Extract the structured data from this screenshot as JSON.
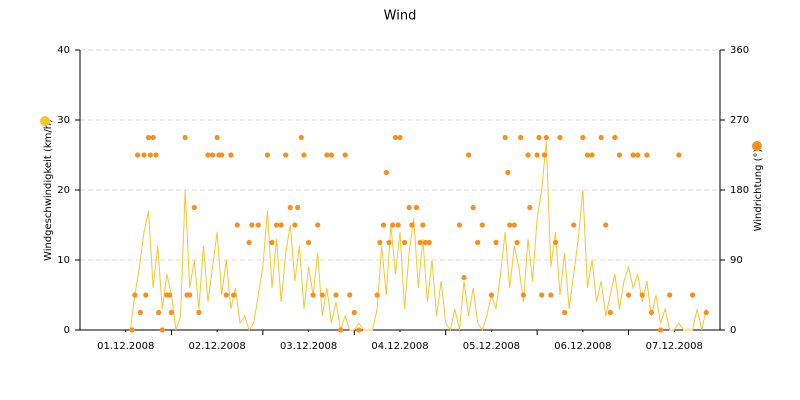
{
  "chart_data": {
    "type": "line-scatter",
    "title": "Wind",
    "y_label": "Windgeschwindigkeit (km/h)",
    "y2_label": "Windrichtung (°)",
    "xlim": [
      0,
      7
    ],
    "xticks": [
      {
        "value": 0.5,
        "label": "01.12.2008"
      },
      {
        "value": 1.5,
        "label": "02.12.2008"
      },
      {
        "value": 2.5,
        "label": "03.12.2008"
      },
      {
        "value": 3.5,
        "label": "04.12.2008"
      },
      {
        "value": 4.5,
        "label": "05.12.2008"
      },
      {
        "value": 5.5,
        "label": "06.12.2008"
      },
      {
        "value": 6.5,
        "label": "07.12.2008"
      }
    ],
    "ylim": [
      0,
      40
    ],
    "yticks": [
      0,
      10,
      20,
      30,
      40
    ],
    "y2lim": [
      0,
      360
    ],
    "y2ticks": [
      0,
      90,
      180,
      270,
      360
    ],
    "grid": true,
    "series": [
      {
        "type": "line",
        "color": "#f8c630",
        "x": [
          0.55,
          0.6,
          0.65,
          0.7,
          0.75,
          0.8,
          0.85,
          0.9,
          0.95,
          1.0,
          1.05,
          1.1,
          1.15,
          1.2,
          1.25,
          1.3,
          1.35,
          1.4,
          1.45,
          1.5,
          1.55,
          1.6,
          1.65,
          1.7,
          1.75,
          1.8,
          1.85,
          1.9,
          1.95,
          2.0,
          2.05,
          2.1,
          2.15,
          2.2,
          2.25,
          2.3,
          2.35,
          2.4,
          2.45,
          2.5,
          2.55,
          2.6,
          2.65,
          2.7,
          2.75,
          2.8,
          2.85,
          2.9,
          2.95,
          3.0,
          3.05,
          3.1,
          3.15,
          3.2,
          3.25,
          3.3,
          3.35,
          3.4,
          3.45,
          3.5,
          3.55,
          3.6,
          3.65,
          3.7,
          3.75,
          3.8,
          3.85,
          3.9,
          3.95,
          4.0,
          4.05,
          4.1,
          4.15,
          4.2,
          4.25,
          4.3,
          4.35,
          4.4,
          4.45,
          4.5,
          4.55,
          4.6,
          4.65,
          4.7,
          4.75,
          4.8,
          4.85,
          4.9,
          4.95,
          5.0,
          5.05,
          5.1,
          5.15,
          5.2,
          5.25,
          5.3,
          5.35,
          5.4,
          5.45,
          5.5,
          5.55,
          5.6,
          5.65,
          5.7,
          5.75,
          5.8,
          5.85,
          5.9,
          5.95,
          6.0,
          6.05,
          6.1,
          6.15,
          6.2,
          6.25,
          6.3,
          6.35,
          6.4,
          6.45,
          6.5,
          6.55,
          6.6,
          6.65,
          6.7,
          6.75,
          6.8,
          6.85
        ],
        "values": [
          0,
          5,
          9,
          14,
          17,
          6,
          12,
          3,
          8,
          5,
          0,
          2,
          20,
          6,
          10,
          3,
          12,
          4,
          9,
          14,
          5,
          10,
          3,
          6,
          1,
          2,
          0,
          1,
          5,
          9,
          17,
          6,
          13,
          4,
          11,
          15,
          7,
          12,
          3,
          9,
          5,
          11,
          2,
          6,
          1,
          4,
          0,
          2,
          0,
          0,
          1,
          0,
          0,
          0,
          3,
          12,
          5,
          15,
          8,
          14,
          3,
          11,
          16,
          6,
          13,
          4,
          10,
          2,
          7,
          1,
          0,
          3,
          0,
          7,
          2,
          6,
          1,
          0,
          2,
          5,
          3,
          8,
          14,
          6,
          12,
          9,
          4,
          13,
          7,
          16,
          20,
          27,
          9,
          14,
          5,
          11,
          3,
          8,
          13,
          20,
          6,
          10,
          4,
          7,
          2,
          5,
          8,
          3,
          7,
          9,
          6,
          8,
          4,
          7,
          2,
          5,
          1,
          3,
          0,
          0,
          1,
          0,
          0,
          0,
          3,
          0,
          3
        ]
      },
      {
        "type": "scatter",
        "axis": "y2",
        "color": "#f7901e",
        "x": [
          0.57,
          0.6,
          0.63,
          0.66,
          0.7,
          0.72,
          0.75,
          0.77,
          0.8,
          0.83,
          0.86,
          0.9,
          0.95,
          0.98,
          1.0,
          1.15,
          1.17,
          1.2,
          1.25,
          1.3,
          1.4,
          1.45,
          1.5,
          1.52,
          1.55,
          1.6,
          1.65,
          1.68,
          1.72,
          1.85,
          1.88,
          1.95,
          2.05,
          2.1,
          2.15,
          2.2,
          2.25,
          2.3,
          2.35,
          2.38,
          2.42,
          2.45,
          2.5,
          2.55,
          2.6,
          2.65,
          2.7,
          2.75,
          2.8,
          2.85,
          2.9,
          2.95,
          3.0,
          3.05,
          3.25,
          3.28,
          3.32,
          3.35,
          3.38,
          3.42,
          3.45,
          3.48,
          3.5,
          3.55,
          3.6,
          3.63,
          3.68,
          3.72,
          3.75,
          3.78,
          3.82,
          4.15,
          4.2,
          4.25,
          4.3,
          4.35,
          4.4,
          4.5,
          4.55,
          4.65,
          4.68,
          4.7,
          4.75,
          4.78,
          4.82,
          4.85,
          4.9,
          4.92,
          5.0,
          5.02,
          5.05,
          5.08,
          5.1,
          5.15,
          5.2,
          5.25,
          5.3,
          5.4,
          5.5,
          5.55,
          5.6,
          5.7,
          5.75,
          5.8,
          5.85,
          5.9,
          6.0,
          6.05,
          6.1,
          6.15,
          6.2,
          6.25,
          6.35,
          6.45,
          6.55,
          6.7,
          6.85
        ],
        "values": [
          0,
          45,
          225,
          22.5,
          225,
          45,
          247.5,
          225,
          247.5,
          225,
          22.5,
          0,
          45,
          45,
          22.5,
          247.5,
          45,
          45,
          157.5,
          22.5,
          225,
          225,
          247.5,
          225,
          225,
          45,
          225,
          45,
          135,
          112.5,
          135,
          135,
          225,
          112.5,
          135,
          135,
          225,
          157.5,
          135,
          157.5,
          247.5,
          225,
          112.5,
          45,
          135,
          45,
          225,
          225,
          45,
          0,
          225,
          45,
          22.5,
          0,
          45,
          112.5,
          135,
          202.5,
          112.5,
          135,
          247.5,
          135,
          247.5,
          112.5,
          157.5,
          135,
          157.5,
          112.5,
          135,
          112.5,
          112.5,
          135,
          67.5,
          225,
          157.5,
          112.5,
          135,
          45,
          112.5,
          247.5,
          202.5,
          135,
          135,
          112.5,
          247.5,
          45,
          225,
          157.5,
          225,
          247.5,
          45,
          225,
          247.5,
          45,
          112.5,
          247.5,
          22.5,
          135,
          247.5,
          225,
          225,
          247.5,
          135,
          22.5,
          247.5,
          225,
          45,
          225,
          225,
          45,
          225,
          22.5,
          0,
          45,
          225,
          45,
          22.5
        ]
      }
    ]
  }
}
